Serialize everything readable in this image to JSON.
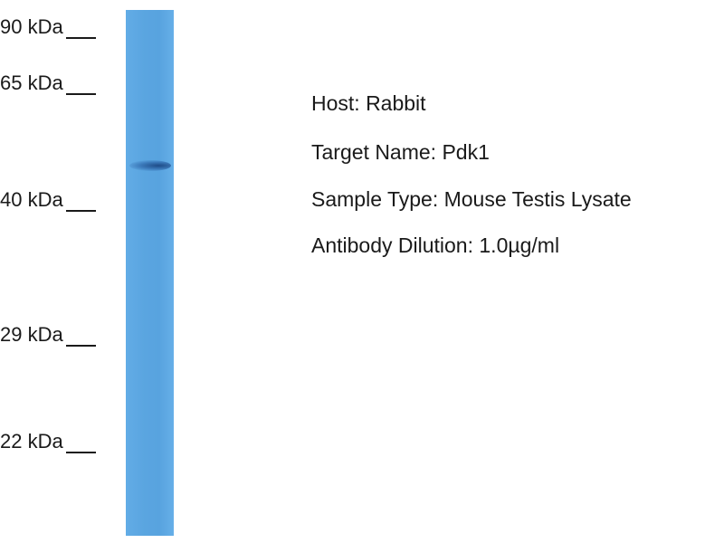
{
  "markers": [
    {
      "label": "90 kDa"
    },
    {
      "label": "65 kDa"
    },
    {
      "label": "40 kDa"
    },
    {
      "label": "29 kDa"
    },
    {
      "label": "22 kDa"
    }
  ],
  "lane_color": "#5aa5e0",
  "info": {
    "host": "Host: Rabbit",
    "target": "Target Name: Pdk1",
    "sample": "Sample Type: Mouse Testis Lysate",
    "dilution": "Antibody Dilution: 1.0µg/ml"
  }
}
